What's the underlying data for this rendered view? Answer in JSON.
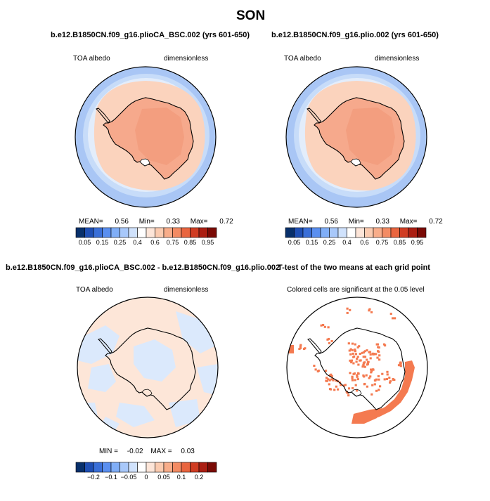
{
  "figure": {
    "title": "SON"
  },
  "panels": [
    {
      "id": "p1",
      "title": "b.e12.B1850CN.f09_g16.plioCA_BSC.002 (yrs 601-650)",
      "left_label": "TOA albedo",
      "right_label": "dimensionless",
      "stats": {
        "mean_label": "MEAN=",
        "mean": "0.56",
        "min_label": "Min=",
        "min": "0.33",
        "max_label": "Max=",
        "max": "0.72"
      }
    },
    {
      "id": "p2",
      "title": "b.e12.B1850CN.f09_g16.plio.002 (yrs 601-650)",
      "left_label": "TOA albedo",
      "right_label": "dimensionless",
      "stats": {
        "mean_label": "MEAN=",
        "mean": "0.56",
        "min_label": "Min=",
        "min": "0.33",
        "max_label": "Max=",
        "max": "0.72"
      }
    },
    {
      "id": "p3",
      "title": "b.e12.B1850CN.f09_g16.plioCA_BSC.002 - b.e12.B1850CN.f09_g16.plio.002",
      "left_label": "TOA albedo",
      "right_label": "dimensionless",
      "stats": {
        "min_label": "MIN =",
        "min": "-0.02",
        "max_label": "MAX =",
        "max": "0.03"
      }
    },
    {
      "id": "p4",
      "title": "T-test of the two means at each grid point",
      "subtitle": "Colored cells are significant at the 0.05 level"
    }
  ],
  "colorbars": {
    "albedo": {
      "colors": [
        "#08306b",
        "#1f4fb4",
        "#3a6fd8",
        "#5a8ff0",
        "#80aef7",
        "#a8c8fa",
        "#d0e2fc",
        "#ffffff",
        "#fde5d8",
        "#fbcbb0",
        "#f8ad8a",
        "#f38b63",
        "#e9653f",
        "#d03c22",
        "#ab1e12",
        "#7a0a05"
      ],
      "ticks": [
        "0.05",
        "0.15",
        "0.25",
        "0.4",
        "0.6",
        "0.75",
        "0.85",
        "0.95"
      ]
    },
    "diff": {
      "colors": [
        "#08306b",
        "#1f4fb4",
        "#3a6fd8",
        "#5a8ff0",
        "#80aef7",
        "#a8c8fa",
        "#d0e2fc",
        "#ffffff",
        "#fde5d8",
        "#fbcbb0",
        "#f8ad8a",
        "#f38b63",
        "#e9653f",
        "#d03c22",
        "#ab1e12",
        "#7a0a05"
      ],
      "ticks": [
        "−0.2",
        "−0.1",
        "−0.05",
        "0",
        "0.05",
        "0.1",
        "0.2"
      ]
    }
  },
  "map_colors": {
    "ocean_outer": "#a9c6f5",
    "ocean_mid": "#c7dcf9",
    "ocean_inner": "#e3edfb",
    "ice_band": "#fbd3bd",
    "land": "#f6a98c",
    "land_high": "#f29b7c",
    "diff_base": "#fde6d8",
    "diff_neg": "#dbe9fc",
    "sig": "#f47a50",
    "coast": "#000000"
  }
}
